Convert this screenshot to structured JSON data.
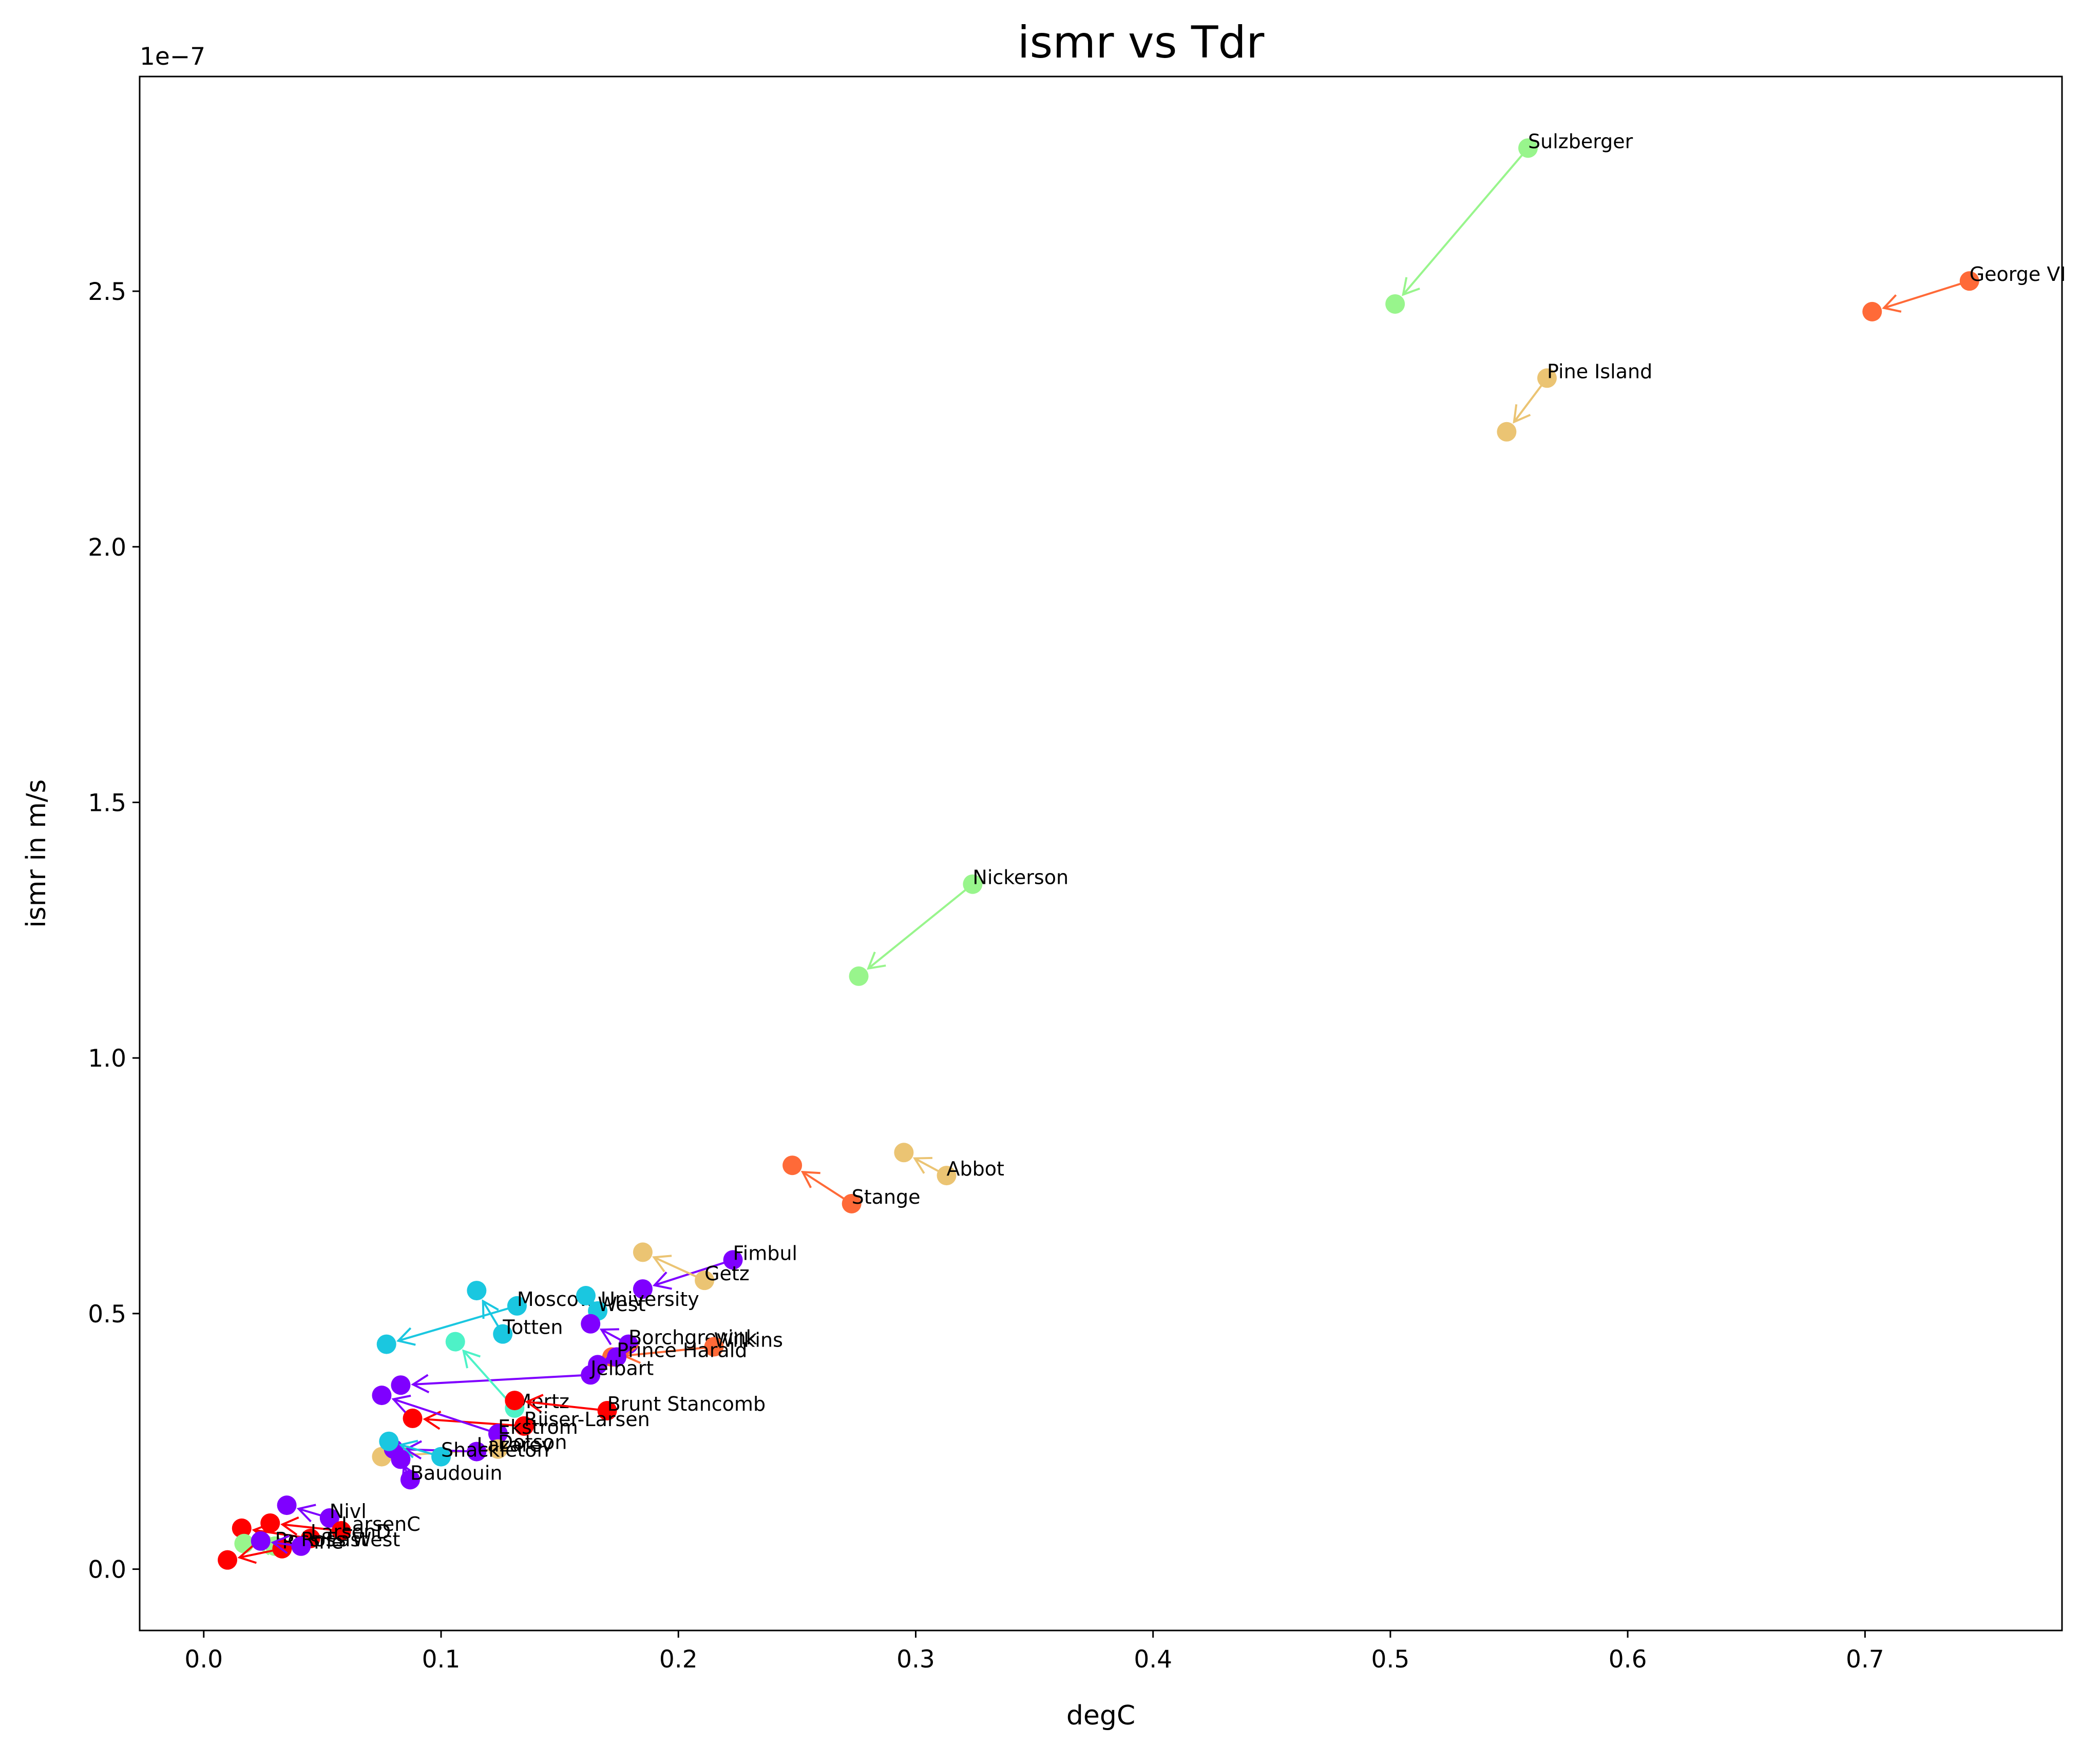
{
  "chart_data": {
    "type": "scatter",
    "title": "ismr vs Tdr",
    "xlabel": "degC",
    "ylabel": "ismr in m/s",
    "y_offset_label": "1e−7",
    "xlim": [
      -0.027,
      0.783
    ],
    "ylim": [
      -0.12,
      2.92
    ],
    "x_ticks": [
      0.0,
      0.1,
      0.2,
      0.3,
      0.4,
      0.5,
      0.6,
      0.7
    ],
    "x_tick_labels": [
      "0.0",
      "0.1",
      "0.2",
      "0.3",
      "0.4",
      "0.5",
      "0.6",
      "0.7"
    ],
    "y_ticks": [
      0.0,
      0.5,
      1.0,
      1.5,
      2.0,
      2.5
    ],
    "y_tick_labels": [
      "0.0",
      "0.5",
      "1.0",
      "1.5",
      "2.0",
      "2.5"
    ],
    "grid": false,
    "legend": "none",
    "y_units_scale": "1e-7",
    "note_on_values": "each entry is an arrow from the labeled start point to the end point",
    "series": [
      {
        "name": "Sulzberger",
        "color": "#98f58c",
        "x0": 0.558,
        "y0": 2.78,
        "x1": 0.502,
        "y1": 2.475
      },
      {
        "name": "George VI",
        "color": "#ff6a38",
        "x0": 0.744,
        "y0": 2.52,
        "x1": 0.703,
        "y1": 2.46
      },
      {
        "name": "Pine Island",
        "color": "#ebc473",
        "x0": 0.566,
        "y0": 2.33,
        "x1": 0.549,
        "y1": 2.225
      },
      {
        "name": "Nickerson",
        "color": "#98f58c",
        "x0": 0.324,
        "y0": 1.34,
        "x1": 0.276,
        "y1": 1.16
      },
      {
        "name": "Abbot",
        "color": "#ebc473",
        "x0": 0.313,
        "y0": 0.77,
        "x1": 0.295,
        "y1": 0.815
      },
      {
        "name": "Stange",
        "color": "#ff6a38",
        "x0": 0.273,
        "y0": 0.715,
        "x1": 0.248,
        "y1": 0.79
      },
      {
        "name": "Fimbul",
        "color": "#7f00ff",
        "x0": 0.223,
        "y0": 0.605,
        "x1": 0.185,
        "y1": 0.548
      },
      {
        "name": "Getz",
        "color": "#ebc473",
        "x0": 0.211,
        "y0": 0.565,
        "x1": 0.185,
        "y1": 0.62
      },
      {
        "name": "Moscow University",
        "color": "#1ac7e0",
        "x0": 0.132,
        "y0": 0.515,
        "x1": 0.077,
        "y1": 0.44
      },
      {
        "name": "West",
        "color": "#1ac7e0",
        "x0": 0.166,
        "y0": 0.505,
        "x1": 0.161,
        "y1": 0.535
      },
      {
        "name": "Totten",
        "color": "#1ac7e0",
        "x0": 0.126,
        "y0": 0.46,
        "x1": 0.115,
        "y1": 0.545
      },
      {
        "name": "Borchgrevink",
        "color": "#7f00ff",
        "x0": 0.179,
        "y0": 0.44,
        "x1": 0.163,
        "y1": 0.48
      },
      {
        "name": "Wilkins",
        "color": "#ff6a38",
        "x0": 0.215,
        "y0": 0.435,
        "x1": 0.172,
        "y1": 0.415
      },
      {
        "name": "Prince Harald",
        "color": "#7f00ff",
        "x0": 0.174,
        "y0": 0.415,
        "x1": 0.166,
        "y1": 0.4
      },
      {
        "name": "Jelbart",
        "color": "#7f00ff",
        "x0": 0.163,
        "y0": 0.38,
        "x1": 0.083,
        "y1": 0.36
      },
      {
        "name": "Mertz",
        "color": "#4ef2c7",
        "x0": 0.131,
        "y0": 0.315,
        "x1": 0.106,
        "y1": 0.445
      },
      {
        "name": "Brunt Stancomb",
        "color": "#ff0000",
        "x0": 0.17,
        "y0": 0.31,
        "x1": 0.131,
        "y1": 0.33
      },
      {
        "name": "Riiser-Larsen",
        "color": "#ff0000",
        "x0": 0.135,
        "y0": 0.28,
        "x1": 0.088,
        "y1": 0.295
      },
      {
        "name": "Ekstrom",
        "color": "#7f00ff",
        "x0": 0.124,
        "y0": 0.265,
        "x1": 0.075,
        "y1": 0.34
      },
      {
        "name": "Dotson",
        "color": "#ebc473",
        "x0": 0.124,
        "y0": 0.235,
        "x1": 0.075,
        "y1": 0.22
      },
      {
        "name": "Lazarev",
        "color": "#7f00ff",
        "x0": 0.115,
        "y0": 0.23,
        "x1": 0.08,
        "y1": 0.235
      },
      {
        "name": "Shackleton",
        "color": "#1ac7e0",
        "x0": 0.1,
        "y0": 0.22,
        "x1": 0.078,
        "y1": 0.25
      },
      {
        "name": "Baudouin",
        "color": "#7f00ff",
        "x0": 0.087,
        "y0": 0.175,
        "x1": 0.083,
        "y1": 0.215
      },
      {
        "name": "Nivl",
        "color": "#7f00ff",
        "x0": 0.053,
        "y0": 0.1,
        "x1": 0.035,
        "y1": 0.125
      },
      {
        "name": "LarsenC",
        "color": "#ff0000",
        "x0": 0.058,
        "y0": 0.075,
        "x1": 0.028,
        "y1": 0.09
      },
      {
        "name": "LarsenD",
        "color": "#ff0000",
        "x0": 0.045,
        "y0": 0.06,
        "x1": 0.016,
        "y1": 0.08
      },
      {
        "name": "Ross East",
        "color": "#98f58c",
        "x0": 0.03,
        "y0": 0.045,
        "x1": 0.017,
        "y1": 0.05
      },
      {
        "name": "Ronne",
        "color": "#ff0000",
        "x0": 0.033,
        "y0": 0.04,
        "x1": 0.01,
        "y1": 0.018
      },
      {
        "name": "Ross West",
        "color": "#7f00ff",
        "x0": 0.041,
        "y0": 0.045,
        "x1": 0.024,
        "y1": 0.055
      }
    ]
  }
}
